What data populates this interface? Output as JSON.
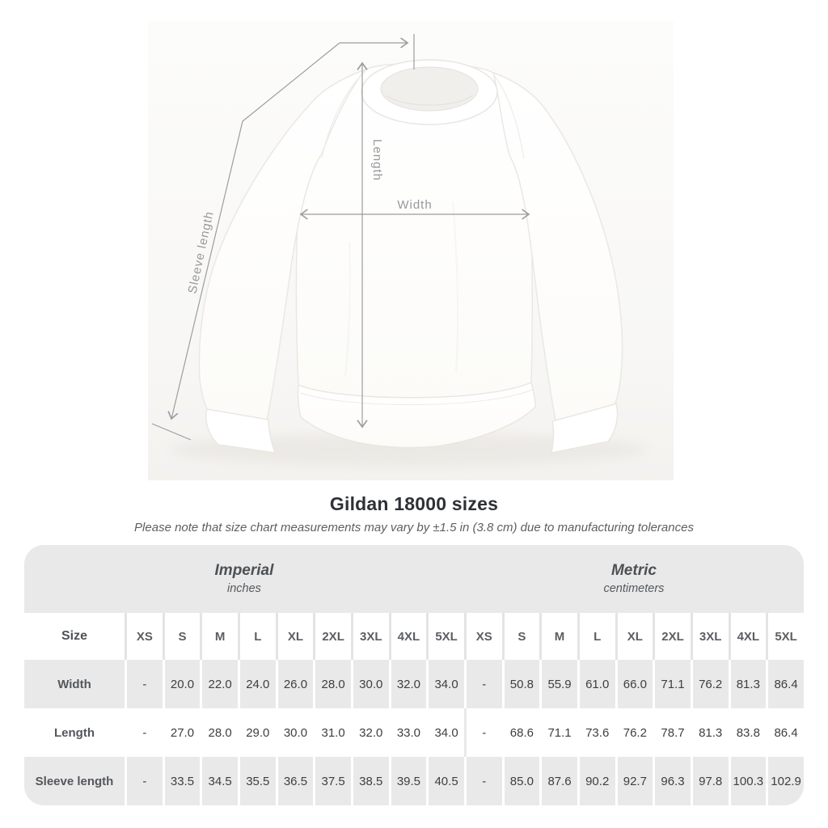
{
  "page": {
    "title": "Gildan 18000 sizes",
    "note": "Please note that size chart measurements may vary by ±1.5 in (3.8 cm) due to manufacturing tolerances"
  },
  "diagram": {
    "labels": {
      "length": "Length",
      "width": "Width",
      "sleeve": "Sleeve length"
    }
  },
  "table": {
    "groups": [
      {
        "label": "Imperial",
        "sublabel": "inches"
      },
      {
        "label": "Metric",
        "sublabel": "centimeters"
      }
    ],
    "size_header": "Size",
    "sizes": [
      "XS",
      "S",
      "M",
      "L",
      "XL",
      "2XL",
      "3XL",
      "4XL",
      "5XL"
    ],
    "rows": [
      {
        "label": "Width",
        "imperial": [
          "-",
          "20.0",
          "22.0",
          "24.0",
          "26.0",
          "28.0",
          "30.0",
          "32.0",
          "34.0"
        ],
        "metric": [
          "-",
          "50.8",
          "55.9",
          "61.0",
          "66.0",
          "71.1",
          "76.2",
          "81.3",
          "86.4"
        ]
      },
      {
        "label": "Length",
        "imperial": [
          "-",
          "27.0",
          "28.0",
          "29.0",
          "30.0",
          "31.0",
          "32.0",
          "33.0",
          "34.0"
        ],
        "metric": [
          "-",
          "68.6",
          "71.1",
          "73.6",
          "76.2",
          "78.7",
          "81.3",
          "83.8",
          "86.4"
        ]
      },
      {
        "label": "Sleeve length",
        "imperial": [
          "-",
          "33.5",
          "34.5",
          "35.5",
          "36.5",
          "37.5",
          "38.5",
          "39.5",
          "40.5"
        ],
        "metric": [
          "-",
          "85.0",
          "87.6",
          "90.2",
          "92.7",
          "96.3",
          "97.8",
          "100.3",
          "102.9"
        ]
      }
    ]
  },
  "chart_data": {
    "type": "table",
    "title": "Gildan 18000 sizes",
    "note": "Please note that size chart measurements may vary by ±1.5 in (3.8 cm) due to manufacturing tolerances",
    "column_groups": [
      "Imperial (inches)",
      "Metric (centimeters)"
    ],
    "categories": [
      "XS",
      "S",
      "M",
      "L",
      "XL",
      "2XL",
      "3XL",
      "4XL",
      "5XL"
    ],
    "series": [
      {
        "name": "Width (in)",
        "values": [
          null,
          20.0,
          22.0,
          24.0,
          26.0,
          28.0,
          30.0,
          32.0,
          34.0
        ]
      },
      {
        "name": "Length (in)",
        "values": [
          null,
          27.0,
          28.0,
          29.0,
          30.0,
          31.0,
          32.0,
          33.0,
          34.0
        ]
      },
      {
        "name": "Sleeve length (in)",
        "values": [
          null,
          33.5,
          34.5,
          35.5,
          36.5,
          37.5,
          38.5,
          39.5,
          40.5
        ]
      },
      {
        "name": "Width (cm)",
        "values": [
          null,
          50.8,
          55.9,
          61.0,
          66.0,
          71.1,
          76.2,
          81.3,
          86.4
        ]
      },
      {
        "name": "Length (cm)",
        "values": [
          null,
          68.6,
          71.1,
          73.6,
          76.2,
          78.7,
          81.3,
          83.8,
          86.4
        ]
      },
      {
        "name": "Sleeve length (cm)",
        "values": [
          null,
          85.0,
          87.6,
          90.2,
          92.7,
          96.3,
          97.8,
          100.3,
          102.9
        ]
      }
    ]
  },
  "colors": {
    "row_stripe": "#e9e9e9",
    "annotation": "#9b9da0",
    "title_text": "#2e3135",
    "table_text": "#3c3f43"
  }
}
